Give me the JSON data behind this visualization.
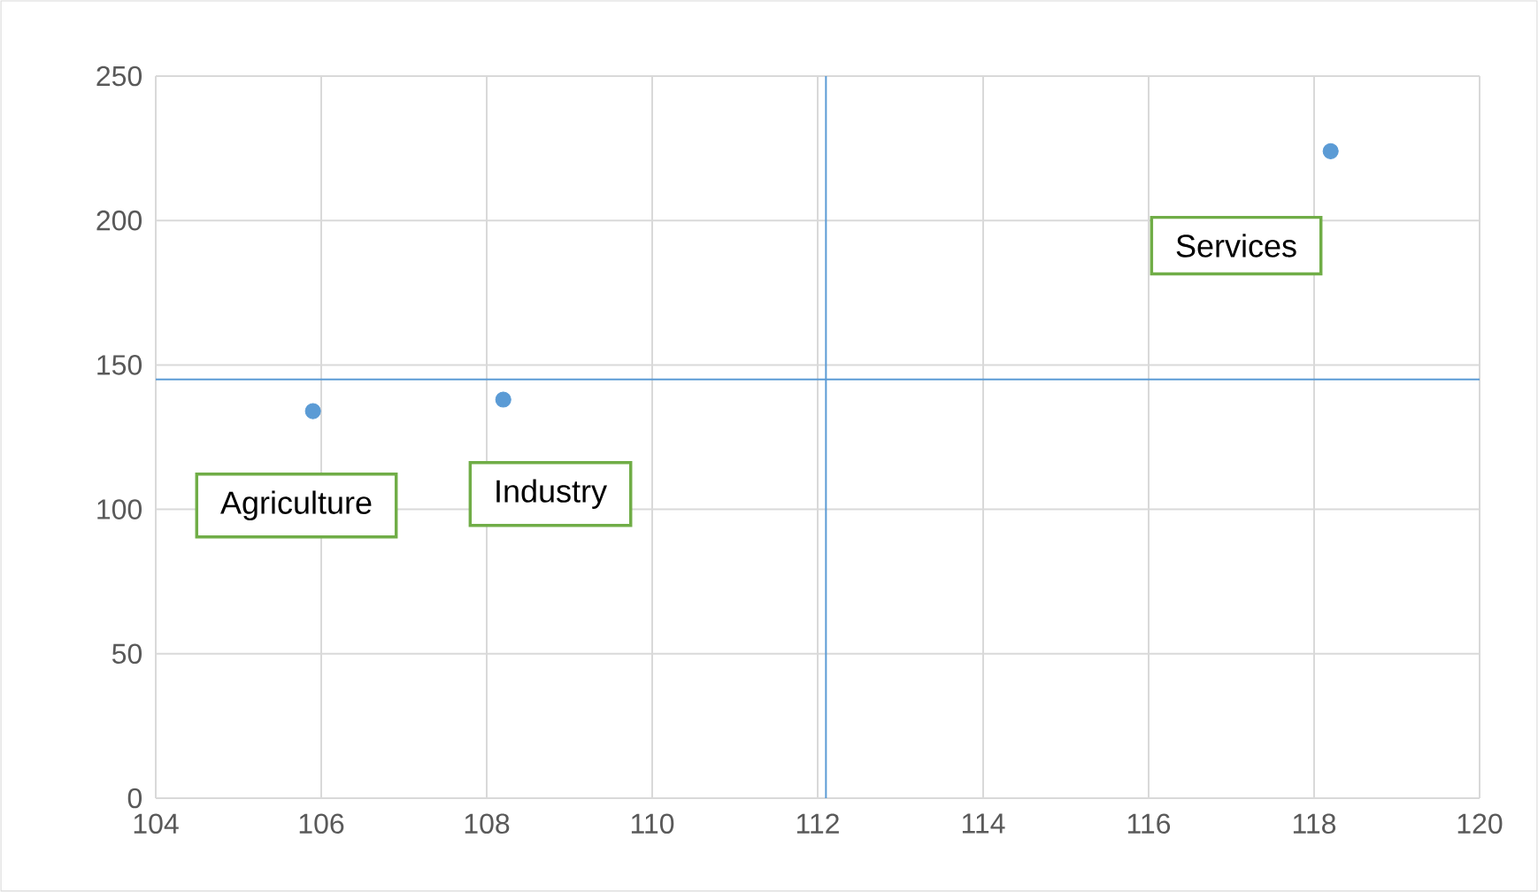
{
  "chart_data": {
    "type": "scatter",
    "x": [
      105.9,
      108.2,
      118.2
    ],
    "values": [
      134,
      138,
      224
    ],
    "color": "#5b9bd5",
    "marker": "circle",
    "xlim": [
      104,
      120
    ],
    "xticks": [
      104,
      106,
      108,
      110,
      112,
      114,
      116,
      118,
      120
    ],
    "ylim": [
      0,
      250
    ],
    "yticks": [
      0,
      50,
      100,
      150,
      200,
      250
    ],
    "grid": true,
    "ref_lines": [
      {
        "axis": "y",
        "value": 145,
        "color": "#5b9bd5"
      },
      {
        "axis": "x",
        "value": 112.1,
        "color": "#5b9bd5"
      }
    ],
    "annotations": [
      {
        "text": "Agriculture",
        "x": 105.9,
        "y": 134
      },
      {
        "text": "Industry",
        "x": 108.2,
        "y": 138
      },
      {
        "text": "Services",
        "x": 118.2,
        "y": 224
      }
    ]
  }
}
